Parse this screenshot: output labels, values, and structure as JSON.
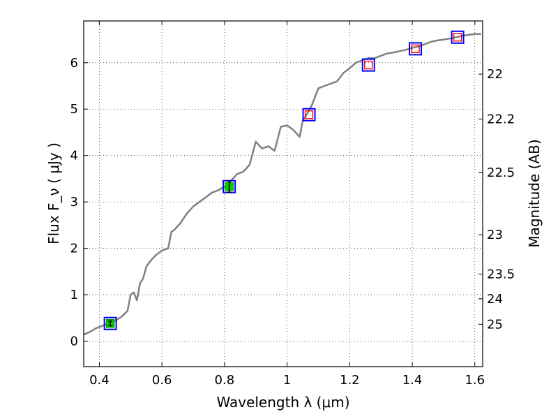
{
  "chart_data": {
    "type": "line",
    "xlabel": "Wavelength  λ (μm)",
    "ylabel": "Flux  F_ν  ( μJy )",
    "y2label": "Magnitude (AB)",
    "xlim": [
      0.35,
      1.625
    ],
    "ylim": [
      -0.55,
      6.9
    ],
    "grid": true,
    "x_ticks": [
      0.4,
      0.6,
      0.8,
      1.0,
      1.2,
      1.4,
      1.6
    ],
    "x_tick_labels": [
      "0.4",
      "0.6",
      "0.8",
      "1",
      "1.2",
      "1.4",
      "1.6"
    ],
    "y_ticks": [
      0,
      1,
      2,
      3,
      4,
      5,
      6
    ],
    "y_tick_labels": [
      "0",
      "1",
      "2",
      "3",
      "4",
      "5",
      "6"
    ],
    "mag_ticks": [
      {
        "mag": 22,
        "label": "22"
      },
      {
        "mag": 22.2,
        "label": "22.2"
      },
      {
        "mag": 22.5,
        "label": "22.5"
      },
      {
        "mag": 23,
        "label": "23"
      },
      {
        "mag": 23.5,
        "label": "23.5"
      },
      {
        "mag": 24,
        "label": "24"
      },
      {
        "mag": 25,
        "label": "25"
      }
    ],
    "series": [
      {
        "name": "",
        "style": "gray-line",
        "color": "#808080",
        "x": [
          0.35,
          0.37,
          0.39,
          0.41,
          0.43,
          0.45,
          0.47,
          0.49,
          0.5,
          0.51,
          0.52,
          0.53,
          0.54,
          0.55,
          0.56,
          0.57,
          0.58,
          0.6,
          0.62,
          0.63,
          0.64,
          0.66,
          0.68,
          0.7,
          0.72,
          0.74,
          0.76,
          0.78,
          0.8,
          0.82,
          0.84,
          0.86,
          0.88,
          0.9,
          0.92,
          0.94,
          0.96,
          0.98,
          1.0,
          1.02,
          1.04,
          1.05,
          1.06,
          1.08,
          1.1,
          1.12,
          1.14,
          1.16,
          1.18,
          1.2,
          1.22,
          1.24,
          1.26,
          1.28,
          1.3,
          1.32,
          1.34,
          1.36,
          1.38,
          1.4,
          1.42,
          1.44,
          1.46,
          1.48,
          1.5,
          1.52,
          1.54,
          1.56,
          1.58,
          1.6,
          1.62
        ],
        "y": [
          0.14,
          0.2,
          0.28,
          0.33,
          0.38,
          0.44,
          0.52,
          0.65,
          1.0,
          1.05,
          0.88,
          1.25,
          1.35,
          1.6,
          1.7,
          1.78,
          1.85,
          1.95,
          2.0,
          2.35,
          2.4,
          2.55,
          2.75,
          2.9,
          3.0,
          3.1,
          3.2,
          3.25,
          3.33,
          3.45,
          3.6,
          3.65,
          3.8,
          4.3,
          4.15,
          4.2,
          4.1,
          4.62,
          4.65,
          4.55,
          4.4,
          4.75,
          4.85,
          5.1,
          5.45,
          5.5,
          5.55,
          5.6,
          5.78,
          5.88,
          6.0,
          6.05,
          6.1,
          6.1,
          6.15,
          6.2,
          6.22,
          6.25,
          6.28,
          6.32,
          6.35,
          6.4,
          6.45,
          6.48,
          6.5,
          6.52,
          6.55,
          6.58,
          6.6,
          6.62,
          6.62
        ]
      },
      {
        "name": "",
        "style": "blue-squares",
        "color": "#0000ff",
        "x": [
          0.435,
          0.815,
          1.07,
          1.26,
          1.41,
          1.545
        ],
        "y": [
          0.38,
          3.33,
          4.88,
          5.95,
          6.3,
          6.55
        ]
      },
      {
        "name": "",
        "style": "red-squares",
        "color": "#ff0000",
        "x": [
          1.07,
          1.26,
          1.41,
          1.545
        ],
        "y": [
          4.88,
          5.95,
          6.3,
          6.55
        ]
      },
      {
        "name": "",
        "style": "green-points-errorbars",
        "color": "#00cc00",
        "x": [
          0.435,
          0.815
        ],
        "y": [
          0.38,
          3.33
        ],
        "yerr": [
          0.05,
          0.12
        ]
      }
    ]
  }
}
